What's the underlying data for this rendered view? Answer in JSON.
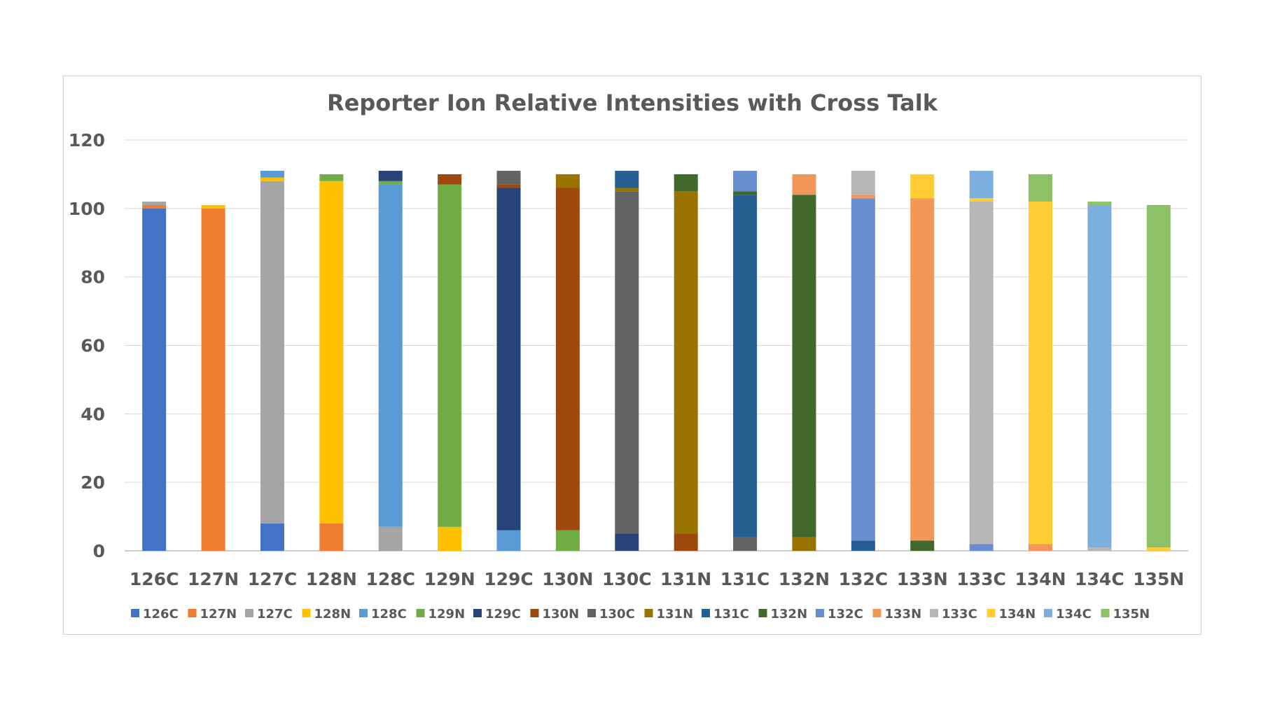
{
  "chart_data": {
    "type": "bar",
    "stacked": true,
    "title": "Reporter Ion Relative Intensities with Cross Talk",
    "xlabel": "",
    "ylabel": "",
    "ylim": [
      0,
      120
    ],
    "yticks": [
      "0",
      "20",
      "40",
      "60",
      "80",
      "100",
      "120"
    ],
    "grid": true,
    "legend_position": "bottom",
    "categories": [
      "126C",
      "127N",
      "127C",
      "128N",
      "128C",
      "129N",
      "129C",
      "130N",
      "130C",
      "131N",
      "131C",
      "132N",
      "132C",
      "133N",
      "133C",
      "134N",
      "134C",
      "135N"
    ],
    "series": [
      {
        "name": "126C",
        "color": "#4472c4",
        "values": [
          100,
          0,
          8,
          0,
          0,
          0,
          0,
          0,
          0,
          0,
          0,
          0,
          0,
          0,
          0,
          0,
          0,
          0
        ]
      },
      {
        "name": "127N",
        "color": "#ed7d31",
        "values": [
          1,
          100,
          0,
          8,
          0,
          0,
          0,
          0,
          0,
          0,
          0,
          0,
          0,
          0,
          0,
          0,
          0,
          0
        ]
      },
      {
        "name": "127C",
        "color": "#a5a5a5",
        "values": [
          1,
          0,
          100,
          0,
          7,
          0,
          0,
          0,
          0,
          0,
          0,
          0,
          0,
          0,
          0,
          0,
          0,
          0
        ]
      },
      {
        "name": "128N",
        "color": "#ffc000",
        "values": [
          0,
          1,
          1,
          100,
          0,
          7,
          0,
          0,
          0,
          0,
          0,
          0,
          0,
          0,
          0,
          0,
          0,
          0
        ]
      },
      {
        "name": "128C",
        "color": "#5b9bd5",
        "values": [
          0,
          0,
          2,
          0,
          100,
          0,
          6,
          0,
          0,
          0,
          0,
          0,
          0,
          0,
          0,
          0,
          0,
          0
        ]
      },
      {
        "name": "129N",
        "color": "#70ad47",
        "values": [
          0,
          0,
          0,
          2,
          1,
          100,
          0,
          6,
          0,
          0,
          0,
          0,
          0,
          0,
          0,
          0,
          0,
          0
        ]
      },
      {
        "name": "129C",
        "color": "#264478",
        "values": [
          0,
          0,
          0,
          0,
          3,
          0,
          100,
          0,
          5,
          0,
          0,
          0,
          0,
          0,
          0,
          0,
          0,
          0
        ]
      },
      {
        "name": "130N",
        "color": "#9e480e",
        "values": [
          0,
          0,
          0,
          0,
          0,
          3,
          1,
          100,
          0,
          5,
          0,
          0,
          0,
          0,
          0,
          0,
          0,
          0
        ]
      },
      {
        "name": "130C",
        "color": "#636363",
        "values": [
          0,
          0,
          0,
          0,
          0,
          0,
          4,
          0,
          100,
          0,
          4,
          0,
          0,
          0,
          0,
          0,
          0,
          0
        ]
      },
      {
        "name": "131N",
        "color": "#997300",
        "values": [
          0,
          0,
          0,
          0,
          0,
          0,
          0,
          4,
          1,
          100,
          0,
          4,
          0,
          0,
          0,
          0,
          0,
          0
        ]
      },
      {
        "name": "131C",
        "color": "#255e91",
        "values": [
          0,
          0,
          0,
          0,
          0,
          0,
          0,
          0,
          5,
          0,
          100,
          0,
          3,
          0,
          0,
          0,
          0,
          0
        ]
      },
      {
        "name": "132N",
        "color": "#43682b",
        "values": [
          0,
          0,
          0,
          0,
          0,
          0,
          0,
          0,
          0,
          5,
          1,
          100,
          0,
          3,
          0,
          0,
          0,
          0
        ]
      },
      {
        "name": "132C",
        "color": "#698ed0",
        "values": [
          0,
          0,
          0,
          0,
          0,
          0,
          0,
          0,
          0,
          0,
          6,
          0,
          100,
          0,
          2,
          0,
          0,
          0
        ]
      },
      {
        "name": "133N",
        "color": "#f1975a",
        "values": [
          0,
          0,
          0,
          0,
          0,
          0,
          0,
          0,
          0,
          0,
          0,
          6,
          1,
          100,
          0,
          2,
          0,
          0
        ]
      },
      {
        "name": "133C",
        "color": "#b7b7b7",
        "values": [
          0,
          0,
          0,
          0,
          0,
          0,
          0,
          0,
          0,
          0,
          0,
          0,
          7,
          0,
          100,
          0,
          1,
          0
        ]
      },
      {
        "name": "134N",
        "color": "#ffcd33",
        "values": [
          0,
          0,
          0,
          0,
          0,
          0,
          0,
          0,
          0,
          0,
          0,
          0,
          0,
          7,
          1,
          100,
          0,
          1
        ]
      },
      {
        "name": "134C",
        "color": "#7cafdd",
        "values": [
          0,
          0,
          0,
          0,
          0,
          0,
          0,
          0,
          0,
          0,
          0,
          0,
          0,
          0,
          8,
          0,
          100,
          0
        ]
      },
      {
        "name": "135N",
        "color": "#8cc168",
        "values": [
          0,
          0,
          0,
          0,
          0,
          0,
          0,
          0,
          0,
          0,
          0,
          0,
          0,
          0,
          0,
          8,
          1,
          100
        ]
      }
    ]
  }
}
